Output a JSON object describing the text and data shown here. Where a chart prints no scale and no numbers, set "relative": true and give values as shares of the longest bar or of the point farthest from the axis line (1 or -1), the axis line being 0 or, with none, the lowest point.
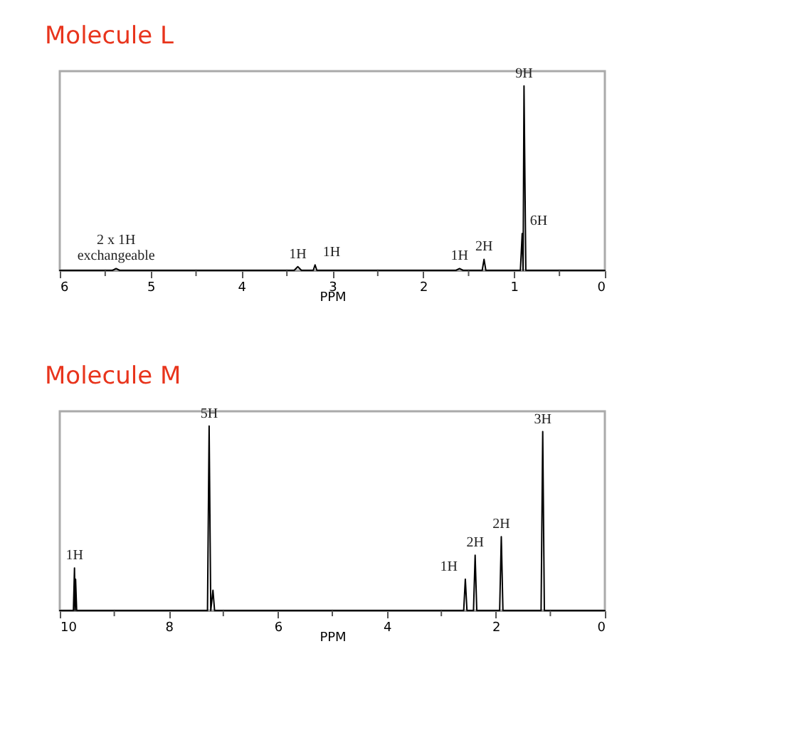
{
  "chart_data": [
    {
      "type": "line",
      "title": "Molecule L",
      "xlabel": "PPM",
      "relative": true,
      "tick_labels": "x",
      "grid": false,
      "legend": false,
      "line_style": "solid",
      "marker": "none",
      "xlim": [
        6,
        0
      ],
      "xticks": [
        6,
        {
          "value": 5.5,
          "label": null
        },
        5,
        {
          "value": 4.5,
          "label": null
        },
        4,
        {
          "value": 3.5,
          "label": null
        },
        3,
        {
          "value": 2.5,
          "label": null
        },
        2,
        {
          "value": 1.5,
          "label": null
        },
        1,
        {
          "value": 0.5,
          "label": null
        },
        0
      ],
      "series": [
        {
          "color": "#000000",
          "x": [
            6,
            5.42,
            5.38,
            5.34,
            3.42,
            3.38,
            3.34,
            3.21,
            3.19,
            3.17,
            1.64,
            1.6,
            1.56,
            1.35,
            1.33,
            1.31,
            0.93,
            0.91,
            0.9,
            0.89,
            0.87,
            0
          ],
          "values": [
            0,
            0,
            0.01,
            0,
            0,
            0.02,
            0,
            0,
            0.03,
            0,
            0,
            0.01,
            0,
            0,
            0.06,
            0,
            0,
            0.2,
            0,
            1,
            0,
            0
          ]
        }
      ],
      "annotations": [
        {
          "text": "2 x 1H\nexchangeable",
          "x": 5.38,
          "y": 0.01
        },
        {
          "text": "1H",
          "x": 3.38,
          "y": 0.02
        },
        {
          "text": "1H",
          "x": 3.19,
          "y": 0.03
        },
        {
          "text": "1H",
          "x": 1.6,
          "y": 0.01
        },
        {
          "text": "2H",
          "x": 1.33,
          "y": 0.06
        },
        {
          "text": "6H",
          "x": 0.91,
          "y": 0.2
        },
        {
          "text": "9H",
          "x": 0.89,
          "y": 1
        }
      ]
    },
    {
      "type": "line",
      "title": "Molecule M",
      "xlabel": "PPM",
      "relative": true,
      "tick_labels": "x",
      "grid": false,
      "legend": false,
      "line_style": "solid",
      "marker": "none",
      "xlim": [
        10,
        0
      ],
      "xticks": [
        10,
        {
          "value": 9,
          "label": null
        },
        8,
        {
          "value": 7,
          "label": null
        },
        6,
        {
          "value": 5,
          "label": null
        },
        4,
        {
          "value": 3,
          "label": null
        },
        2,
        {
          "value": 1,
          "label": null
        },
        0
      ],
      "series": [
        {
          "color": "#000000",
          "x": [
            10,
            9.75,
            9.73,
            9.72,
            9.71,
            9.69,
            7.29,
            7.26,
            7.23,
            7.19,
            7.16,
            2.59,
            2.56,
            2.53,
            2.41,
            2.38,
            2.35,
            1.93,
            1.9,
            1.87,
            1.17,
            1.14,
            1.11,
            0
          ],
          "values": [
            0,
            0,
            0.23,
            0,
            0.17,
            0,
            0,
            1,
            0,
            0.11,
            0,
            0,
            0.17,
            0,
            0,
            0.3,
            0,
            0,
            0.4,
            0,
            0,
            0.97,
            0,
            0
          ]
        }
      ],
      "annotations": [
        {
          "text": "1H",
          "x": 9.73,
          "y": 0.23
        },
        {
          "text": "5H",
          "x": 7.26,
          "y": 1
        },
        {
          "text": "1H",
          "x": 2.56,
          "y": 0.17
        },
        {
          "text": "2H",
          "x": 2.38,
          "y": 0.3
        },
        {
          "text": "2H",
          "x": 1.9,
          "y": 0.4
        },
        {
          "text": "3H",
          "x": 1.14,
          "y": 0.97
        }
      ]
    }
  ]
}
